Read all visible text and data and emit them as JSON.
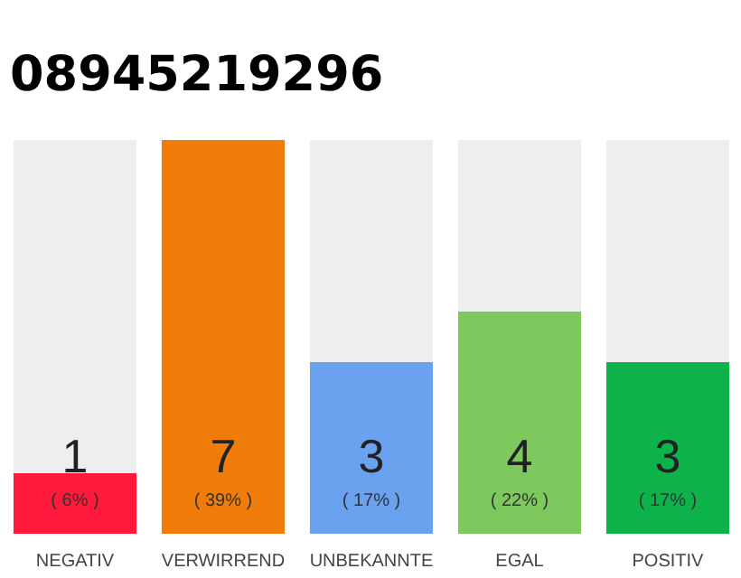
{
  "chart_data": {
    "type": "bar",
    "title": "08945219296",
    "categories": [
      "NEGATIV",
      "VERWIRREND",
      "UNBEKANNTE",
      "EGAL",
      "POSITIV"
    ],
    "values": [
      6,
      39,
      17,
      22,
      17
    ],
    "colors": [
      "#ff1a3c",
      "#f07d0a",
      "#6aa2f0",
      "#7dc95e",
      "#0db34a"
    ],
    "value_labels": [
      "( 6% )",
      "( 39% )",
      "( 17% )",
      "( 22% )",
      "( 17% )"
    ],
    "annotations": [
      "1",
      "7",
      "3",
      "4",
      "3"
    ],
    "ylim": [
      0,
      39
    ],
    "grid": false
  }
}
